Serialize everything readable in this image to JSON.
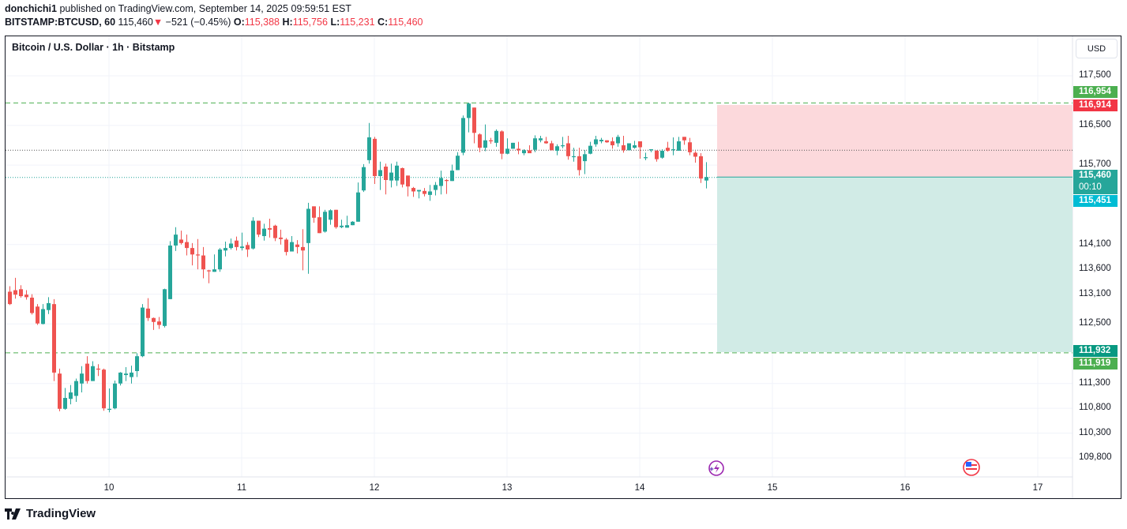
{
  "header": {
    "publisher": "donchichi1",
    "published_text": "published on TradingView.com, September 14, 2025 09:59:51 EST",
    "symbol": "BITSTAMP:BTCUSD, 60",
    "last": "115,460",
    "change_arrow": "▼",
    "change": "−521 (−0.45%)",
    "o_label": "O:",
    "o": "115,388",
    "h_label": "H:",
    "h": "115,756",
    "l_label": "L:",
    "l": "115,231",
    "c_label": "C:",
    "c": "115,460"
  },
  "chart_title": "Bitcoin / U.S. Dollar · 1h · Bitstamp",
  "currency_button": "USD",
  "footer": {
    "brand": "TradingView"
  },
  "colors": {
    "up": "#26a69a",
    "down": "#ef5350",
    "stop_zone": "#fcd9dc",
    "target_zone": "#d1ebe6",
    "dashed_green": "#4caf50"
  },
  "chart_data": {
    "type": "candlestick",
    "title": "Bitcoin / U.S. Dollar · 1h · Bitstamp",
    "xlabel": "",
    "ylabel": "USD",
    "ylim": [
      109400,
      118100
    ],
    "y_ticks": [
      "117,500",
      "116,500",
      "115,700",
      "114,100",
      "113,600",
      "113,100",
      "112,500",
      "111,300",
      "110,800",
      "110,300",
      "109,800"
    ],
    "x_ticks": [
      "10",
      "11",
      "12",
      "13",
      "14",
      "15",
      "16",
      "17"
    ],
    "grid": true,
    "price_tags": [
      {
        "label": "116,954",
        "color": "#4caf50",
        "price": 116954
      },
      {
        "label": "116,914",
        "color": "#f23645",
        "price": 116914
      },
      {
        "label": "115,460",
        "sub": "00:10",
        "color": "#26a69a",
        "price": 115460
      },
      {
        "label": "115,451",
        "color": "#00bcd4",
        "price": 115451
      },
      {
        "label": "111,932",
        "color": "#089981",
        "price": 111932
      },
      {
        "label": "111,919",
        "color": "#4caf50",
        "price": 111919
      }
    ],
    "levels": {
      "upper_dashed": 116954,
      "lower_dashed": 111919,
      "dotted_dark": 116000,
      "dotted_teal": 115451,
      "position_entry": 115460,
      "position_stop": 116914,
      "position_target": 111932
    },
    "candles_ohlc": [
      [
        113150,
        112900,
        113260,
        112880
      ],
      [
        113180,
        113090,
        113430,
        113010
      ],
      [
        113200,
        113060,
        113280,
        113030
      ],
      [
        113090,
        113040,
        113180,
        112990
      ],
      [
        113030,
        112720,
        113100,
        112690
      ],
      [
        112850,
        112510,
        112900,
        112480
      ],
      [
        112500,
        112800,
        112900,
        112490
      ],
      [
        112780,
        112920,
        113040,
        112700
      ],
      [
        112900,
        111520,
        113000,
        111350
      ],
      [
        111500,
        110790,
        111600,
        110740
      ],
      [
        110790,
        111010,
        111210,
        110770
      ],
      [
        110990,
        111120,
        111270,
        110880
      ],
      [
        111050,
        111350,
        111400,
        110930
      ],
      [
        111300,
        111500,
        111650,
        111120
      ],
      [
        111700,
        111350,
        111850,
        111300
      ],
      [
        111350,
        111650,
        111750,
        111370
      ],
      [
        111600,
        111580,
        111690,
        111450
      ],
      [
        111580,
        110800,
        111600,
        110750
      ],
      [
        110770,
        110790,
        111200,
        110720
      ],
      [
        110800,
        111300,
        111360,
        110780
      ],
      [
        111300,
        111520,
        111530,
        111260
      ],
      [
        111470,
        111500,
        111630,
        111350
      ],
      [
        111430,
        111520,
        111660,
        111300
      ],
      [
        111550,
        111850,
        111910,
        111430
      ],
      [
        111850,
        112830,
        112900,
        111830
      ],
      [
        112810,
        112620,
        113020,
        112560
      ],
      [
        112620,
        112540,
        112630,
        112380
      ],
      [
        112550,
        112480,
        112640,
        112400
      ],
      [
        112460,
        113200,
        113210,
        112430
      ],
      [
        113000,
        114080,
        114170,
        113000
      ],
      [
        114080,
        114300,
        114450,
        113970
      ],
      [
        114200,
        114130,
        114380,
        114100
      ],
      [
        114150,
        114030,
        114300,
        113880
      ],
      [
        114030,
        113900,
        114130,
        113680
      ],
      [
        113900,
        113880,
        114210,
        113600
      ],
      [
        113880,
        113600,
        114050,
        113420
      ],
      [
        113580,
        113560,
        113590,
        113320
      ],
      [
        113550,
        113600,
        113900,
        113600
      ],
      [
        113600,
        114000,
        114030,
        113550
      ],
      [
        113980,
        114030,
        114160,
        113860
      ],
      [
        114030,
        114120,
        114220,
        114000
      ],
      [
        114180,
        114050,
        114260,
        113980
      ],
      [
        114030,
        114060,
        114340,
        113980
      ],
      [
        114090,
        114000,
        114150,
        113850
      ],
      [
        114020,
        114580,
        114650,
        114000
      ],
      [
        114580,
        114300,
        114580,
        114250
      ],
      [
        114270,
        114420,
        114520,
        114180
      ],
      [
        114430,
        114400,
        114620,
        114240
      ],
      [
        114480,
        114230,
        114500,
        114170
      ],
      [
        114240,
        114210,
        114400,
        114100
      ],
      [
        114200,
        113950,
        114230,
        113880
      ],
      [
        113960,
        114150,
        114270,
        113970
      ],
      [
        114100,
        114050,
        114190,
        113920
      ],
      [
        114050,
        113980,
        114410,
        113580
      ],
      [
        114130,
        114820,
        114940,
        113510
      ],
      [
        114870,
        114640,
        114870,
        114540
      ],
      [
        114650,
        114330,
        114870,
        114350
      ],
      [
        114360,
        114760,
        114800,
        114340
      ],
      [
        114600,
        114790,
        114810,
        114500
      ],
      [
        114800,
        114450,
        114790,
        114420
      ],
      [
        114450,
        114480,
        114600,
        114430
      ],
      [
        114440,
        114490,
        114680,
        114580
      ],
      [
        114490,
        114560,
        114570,
        114560
      ],
      [
        114560,
        115150,
        115350,
        114560
      ],
      [
        115190,
        115660,
        115720,
        115160
      ],
      [
        115800,
        116260,
        116550,
        115730
      ],
      [
        116230,
        115480,
        116270,
        115320
      ],
      [
        115480,
        115600,
        115770,
        115200
      ],
      [
        115670,
        115400,
        115730,
        115110
      ],
      [
        115390,
        115550,
        115730,
        115250
      ],
      [
        115390,
        115690,
        115770,
        115280
      ],
      [
        115640,
        115310,
        115650,
        115250
      ],
      [
        115490,
        115270,
        115480,
        115070
      ],
      [
        115240,
        115170,
        115260,
        115060
      ],
      [
        115170,
        115200,
        115190,
        115030
      ],
      [
        115180,
        115120,
        115240,
        115070
      ],
      [
        115100,
        115170,
        115300,
        114980
      ],
      [
        115200,
        115300,
        115360,
        115090
      ],
      [
        115280,
        115440,
        115590,
        115110
      ],
      [
        115400,
        115380,
        115420,
        115120
      ],
      [
        115380,
        115590,
        115710,
        115380
      ],
      [
        115600,
        115890,
        115960,
        115610
      ],
      [
        115950,
        116650,
        116700,
        115900
      ],
      [
        116650,
        116940,
        116960,
        116360
      ],
      [
        116860,
        116350,
        116860,
        116140
      ],
      [
        116320,
        116050,
        116340,
        115960
      ],
      [
        116050,
        116200,
        116520,
        115980
      ],
      [
        116200,
        116180,
        116250,
        116130
      ],
      [
        116150,
        116390,
        116420,
        116070
      ],
      [
        116380,
        115930,
        116400,
        115820
      ],
      [
        115930,
        116030,
        116240,
        115920
      ],
      [
        116030,
        116150,
        116140,
        116050
      ],
      [
        116030,
        116000,
        116170,
        115920
      ],
      [
        115940,
        116000,
        116020,
        115900
      ],
      [
        116000,
        115940,
        116100,
        115960
      ],
      [
        116010,
        116240,
        116300,
        115960
      ],
      [
        116200,
        116240,
        116290,
        116160
      ],
      [
        116180,
        116140,
        116270,
        116130
      ],
      [
        116140,
        116000,
        116190,
        116020
      ],
      [
        115990,
        116080,
        116120,
        115900
      ],
      [
        116080,
        116100,
        116270,
        116040
      ],
      [
        116140,
        115880,
        116290,
        115810
      ],
      [
        115860,
        115880,
        116050,
        115770
      ],
      [
        115880,
        115600,
        116050,
        115490
      ],
      [
        115780,
        115920,
        116000,
        115520
      ],
      [
        115930,
        116090,
        116170,
        115920
      ],
      [
        116120,
        116220,
        116290,
        116070
      ],
      [
        116180,
        116210,
        116250,
        116140
      ],
      [
        116200,
        116160,
        116200,
        116150
      ],
      [
        116180,
        116100,
        116260,
        116030
      ],
      [
        116140,
        116270,
        116310,
        116070
      ],
      [
        116100,
        116000,
        116290,
        115950
      ],
      [
        116000,
        116140,
        116050,
        116140
      ],
      [
        116050,
        116100,
        116190,
        116030
      ],
      [
        116180,
        116060,
        116110,
        115830
      ],
      [
        115840,
        115860,
        115950,
        115800
      ],
      [
        116000,
        116020,
        116020,
        115960
      ],
      [
        115990,
        115820,
        116000,
        115770
      ],
      [
        115850,
        115990,
        116020,
        115830
      ],
      [
        116050,
        115990,
        116170,
        115970
      ],
      [
        116000,
        116020,
        116260,
        115900
      ],
      [
        115990,
        116180,
        116270,
        116030
      ],
      [
        116270,
        116200,
        116250,
        116110
      ],
      [
        116160,
        115960,
        116250,
        115900
      ],
      [
        115950,
        115870,
        115980,
        115750
      ],
      [
        115880,
        115430,
        115940,
        115340
      ],
      [
        115390,
        115460,
        115760,
        115231
      ]
    ]
  }
}
